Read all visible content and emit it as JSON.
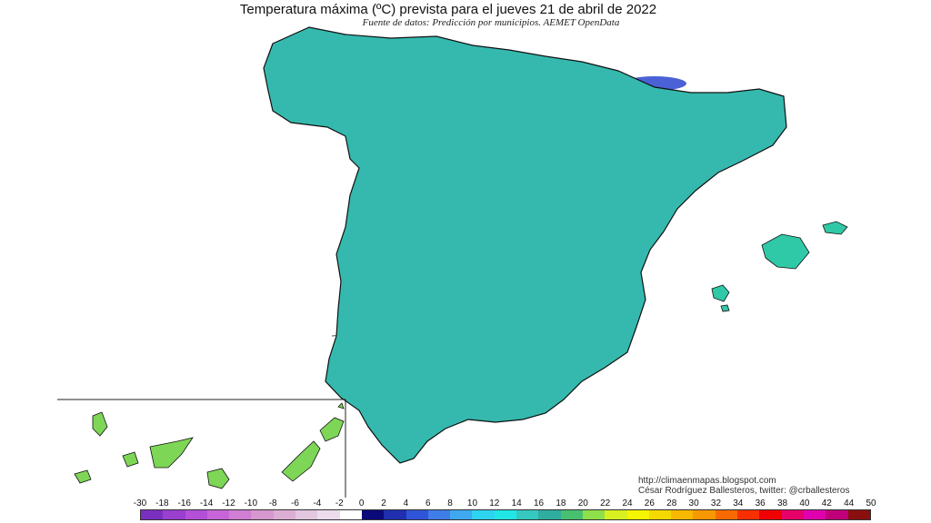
{
  "header": {
    "title": "Temperatura máxima (ºC) prevista para el jueves 21 de abril de 2022",
    "source": "Fuente de datos: Predicción por municipios. AEMET OpenData"
  },
  "credits": {
    "url": "http://climaenmapas.blogspot.com",
    "author": "César Rodríguez Ballesteros, twitter: @crballesteros"
  },
  "legend": {
    "labels": [
      "-30",
      "-18",
      "-16",
      "-14",
      "-12",
      "-10",
      "-8",
      "-6",
      "-4",
      "-2",
      "0",
      "2",
      "4",
      "6",
      "8",
      "10",
      "12",
      "14",
      "16",
      "18",
      "20",
      "22",
      "24",
      "26",
      "28",
      "30",
      "32",
      "34",
      "36",
      "38",
      "40",
      "42",
      "44",
      "50"
    ],
    "colors": [
      "#7b2fbf",
      "#9a3fd0",
      "#b44fd8",
      "#c765d8",
      "#d07ed4",
      "#d797cf",
      "#dcaed6",
      "#e3c6e0",
      "#ecdcec",
      "#ffffff",
      "#0a0a7a",
      "#1f2fb0",
      "#2f55d8",
      "#3f7de8",
      "#3fa8f0",
      "#2ed3f0",
      "#21e6e6",
      "#35c8bf",
      "#2fae9f",
      "#48c070",
      "#8ee04a",
      "#d8f020",
      "#f5f500",
      "#f5d800",
      "#f8b800",
      "#f89800",
      "#f86a00",
      "#f83000",
      "#f00000",
      "#e8006a",
      "#e000b0",
      "#c0007a",
      "#8a1010"
    ]
  },
  "map": {
    "region_colors": {
      "cantabrian": "#2ed9d6",
      "central": "#35b9ae",
      "warm_south": "#d7f02a",
      "yellow_core": "#f0f52a",
      "green_belt": "#7ed657",
      "cold_peaks": "#4b61d6",
      "north_east": "#b9e84e",
      "coast_east": "#e6f33a",
      "islands": "#30c9a8",
      "border": "#111111"
    }
  }
}
